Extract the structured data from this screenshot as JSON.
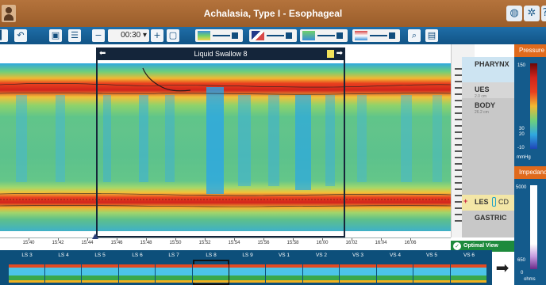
{
  "window": {
    "title": "Achalasia, Type I - Esophageal"
  },
  "toolbar": {
    "time_window": "00:30 ▾",
    "icons": [
      "undo-icon",
      "save-icon",
      "list-icon",
      "zoom-out-icon",
      "zoom-in-icon",
      "fit-icon",
      "gradient-settings-icon",
      "report-icon"
    ]
  },
  "swallow": {
    "label": "Liquid Swallow 8"
  },
  "anatomy": {
    "pharynx": "PHARYNX",
    "ues": "UES",
    "ues_sub": "2.0 cm",
    "body": "BODY",
    "body_sub": "26.2 cm",
    "les": "LES",
    "cd": "CD",
    "gastric": "GASTRIC"
  },
  "right_panel": {
    "pressure_label": "Pressure",
    "pressure_max": "150",
    "pressure_mid1": "30",
    "pressure_mid2": "20",
    "pressure_min": "-10",
    "pressure_unit": "mmHg",
    "impedance_label": "Impedance",
    "impedance_max": "5000",
    "impedance_mid": "650",
    "impedance_min": "0",
    "impedance_unit": "ohms"
  },
  "time_axis": [
    "15:40",
    "15:42",
    "15:44",
    "15:46",
    "15:48",
    "15:50",
    "15:52",
    "15:54",
    "15:56",
    "15:58",
    "16:00",
    "16:02",
    "16:04",
    "16:06"
  ],
  "optimal_view": "Optimal View",
  "strip": [
    "LS 3",
    "LS 4",
    "LS 5",
    "LS 6",
    "LS 7",
    "LS 8",
    "LS 9",
    "VS 1",
    "VS 2",
    "VS 3",
    "VS 4",
    "VS 5",
    "VS 6"
  ],
  "colors": {
    "accent": "#e06a1c",
    "toolbar": "#1f6ea8",
    "titlebar": "#a8652f"
  }
}
